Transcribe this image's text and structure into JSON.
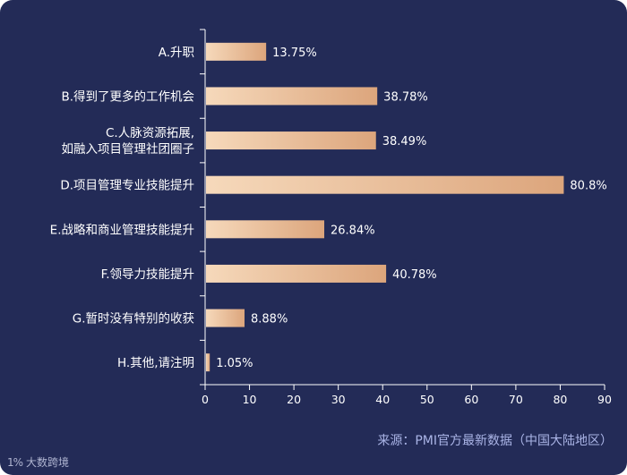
{
  "chart_data": {
    "type": "bar",
    "orientation": "horizontal",
    "categories": [
      [
        "A.升职"
      ],
      [
        "B.得到了更多的工作机会"
      ],
      [
        "C.人脉资源拓展,",
        "如融入项目管理社团圈子"
      ],
      [
        "D.项目管理专业技能提升"
      ],
      [
        "E.战略和商业管理技能提升"
      ],
      [
        "F.领导力技能提升"
      ],
      [
        "G.暂时没有特别的收获"
      ],
      [
        "H.其他,请注明"
      ]
    ],
    "values": [
      13.75,
      38.78,
      38.49,
      80.8,
      26.84,
      40.78,
      8.88,
      1.05
    ],
    "value_labels": [
      "13.75%",
      "38.78%",
      "38.49%",
      "80.8%",
      "26.84%",
      "40.78%",
      "8.88%",
      "1.05%"
    ],
    "xlim": [
      0,
      90
    ],
    "x_ticks": [
      0,
      10,
      20,
      30,
      40,
      50,
      60,
      70,
      80,
      90
    ],
    "grid": false,
    "bar_color_start": "#f6d9bb",
    "bar_color_end": "#dca57c",
    "background": "#232b57"
  },
  "source": "来源：PMI官方最新数据（中国大陆地区）",
  "watermark": {
    "logo": "1%",
    "text": "大数跨境"
  }
}
